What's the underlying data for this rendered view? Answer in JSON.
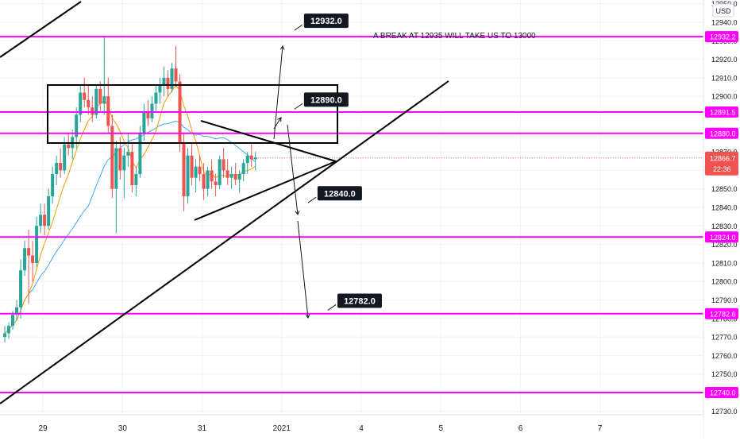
{
  "chart_data": {
    "type": "candlestick",
    "currency": "USD",
    "y_ticks": [
      12730,
      12740,
      12750,
      12760,
      12770,
      12780,
      12790,
      12800,
      12810,
      12820,
      12830,
      12840,
      12850,
      12860,
      12870,
      12880,
      12890,
      12900,
      12910,
      12920,
      12930,
      12940,
      12950
    ],
    "x_ticks": [
      {
        "label": "29",
        "day": 29
      },
      {
        "label": "30",
        "day": 30
      },
      {
        "label": "31",
        "day": 31
      },
      {
        "label": "2021",
        "day": 32
      },
      {
        "label": "4",
        "day": 33
      },
      {
        "label": "5",
        "day": 34
      },
      {
        "label": "6",
        "day": 35
      },
      {
        "label": "7",
        "day": 36
      }
    ],
    "ylim": [
      12728,
      12952
    ],
    "xlim": [
      28.46,
      37.3
    ],
    "grid": true,
    "levels": [
      {
        "value": 12932.2,
        "label": "12932.2"
      },
      {
        "value": 12891.5,
        "label": "12891.5"
      },
      {
        "value": 12880.0,
        "label": "12880.0"
      },
      {
        "value": 12824.0,
        "label": "12824.0"
      },
      {
        "value": 12782.6,
        "label": "12782.6"
      },
      {
        "value": 12740.0,
        "label": "12740.0"
      }
    ],
    "last_price": {
      "value": 12866.7,
      "label": "12866.7",
      "countdown": "22:36"
    },
    "callouts": [
      {
        "label": "12932.0",
        "x": 32.28,
        "y": 12940.8
      },
      {
        "label": "12890.0",
        "x": 32.28,
        "y": 12898.2
      },
      {
        "label": "12840.0",
        "x": 32.45,
        "y": 12847.6
      },
      {
        "label": "12782.0",
        "x": 32.7,
        "y": 12789.6
      }
    ],
    "annotation": "A BREAK AT 12935 WILL TAKE US TO 13000",
    "candles": [
      [
        28.52,
        12770,
        12776,
        12767,
        12772
      ],
      [
        28.57,
        12772,
        12778,
        12769,
        12776
      ],
      [
        28.62,
        12776,
        12784,
        12774,
        12782
      ],
      [
        28.67,
        12782,
        12790,
        12779,
        12786
      ],
      [
        28.72,
        12786,
        12812,
        12780,
        12806
      ],
      [
        28.77,
        12806,
        12822,
        12803,
        12818
      ],
      [
        28.82,
        12818,
        12828,
        12788,
        12814
      ],
      [
        28.87,
        12814,
        12822,
        12800,
        12810
      ],
      [
        28.92,
        12810,
        12835,
        12808,
        12830
      ],
      [
        28.97,
        12830,
        12842,
        12826,
        12836
      ],
      [
        29.02,
        12836,
        12842,
        12825,
        12830
      ],
      [
        29.07,
        12830,
        12850,
        12828,
        12846
      ],
      [
        29.12,
        12846,
        12862,
        12842,
        12858
      ],
      [
        29.17,
        12858,
        12868,
        12852,
        12864
      ],
      [
        29.22,
        12864,
        12872,
        12856,
        12860
      ],
      [
        29.27,
        12860,
        12878,
        12858,
        12874
      ],
      [
        29.32,
        12874,
        12880,
        12868,
        12872
      ],
      [
        29.37,
        12872,
        12882,
        12866,
        12878
      ],
      [
        29.42,
        12878,
        12894,
        12872,
        12890
      ],
      [
        29.47,
        12890,
        12906,
        12886,
        12902
      ],
      [
        29.52,
        12902,
        12910,
        12894,
        12898
      ],
      [
        29.57,
        12898,
        12906,
        12890,
        12894
      ],
      [
        29.62,
        12894,
        12900,
        12886,
        12890
      ],
      [
        29.67,
        12890,
        12906,
        12888,
        12904
      ],
      [
        29.72,
        12904,
        12908,
        12892,
        12896
      ],
      [
        29.77,
        12896,
        12932,
        12890,
        12900
      ],
      [
        29.82,
        12900,
        12910,
        12880,
        12884
      ],
      [
        29.87,
        12884,
        12890,
        12845,
        12850
      ],
      [
        29.92,
        12850,
        12876,
        12826,
        12872
      ],
      [
        29.97,
        12872,
        12878,
        12855,
        12860
      ],
      [
        30.02,
        12860,
        12872,
        12845,
        12868
      ],
      [
        30.07,
        12868,
        12880,
        12862,
        12870
      ],
      [
        30.12,
        12870,
        12875,
        12848,
        12852
      ],
      [
        30.17,
        12852,
        12862,
        12846,
        12858
      ],
      [
        30.22,
        12858,
        12884,
        12856,
        12880
      ],
      [
        30.27,
        12880,
        12896,
        12876,
        12892
      ],
      [
        30.32,
        12892,
        12898,
        12884,
        12888
      ],
      [
        30.37,
        12888,
        12900,
        12886,
        12896
      ],
      [
        30.42,
        12896,
        12906,
        12892,
        12902
      ],
      [
        30.47,
        12902,
        12910,
        12896,
        12906
      ],
      [
        30.52,
        12906,
        12916,
        12900,
        12910
      ],
      [
        30.57,
        12910,
        12914,
        12900,
        12904
      ],
      [
        30.62,
        12904,
        12918,
        12902,
        12915
      ],
      [
        30.67,
        12915,
        12927,
        12905,
        12908
      ],
      [
        30.72,
        12908,
        12912,
        12870,
        12875
      ],
      [
        30.77,
        12875,
        12880,
        12838,
        12846
      ],
      [
        30.82,
        12846,
        12872,
        12842,
        12868
      ],
      [
        30.87,
        12868,
        12875,
        12852,
        12856
      ],
      [
        30.92,
        12856,
        12866,
        12848,
        12862
      ],
      [
        30.97,
        12862,
        12868,
        12854,
        12858
      ],
      [
        31.02,
        12858,
        12864,
        12844,
        12850
      ],
      [
        31.07,
        12850,
        12862,
        12846,
        12860
      ],
      [
        31.12,
        12860,
        12866,
        12850,
        12854
      ],
      [
        31.17,
        12854,
        12858,
        12846,
        12852
      ],
      [
        31.22,
        12852,
        12868,
        12850,
        12866
      ],
      [
        31.27,
        12866,
        12872,
        12856,
        12860
      ],
      [
        31.32,
        12860,
        12866,
        12852,
        12856
      ],
      [
        31.37,
        12856,
        12862,
        12850,
        12858
      ],
      [
        31.42,
        12858,
        12864,
        12852,
        12855
      ],
      [
        31.47,
        12855,
        12860,
        12848,
        12858
      ],
      [
        31.52,
        12858,
        12866,
        12854,
        12864
      ],
      [
        31.57,
        12864,
        12870,
        12858,
        12868
      ],
      [
        31.62,
        12868,
        12874,
        12862,
        12866
      ],
      [
        31.67,
        12866,
        12870,
        12860,
        12867
      ]
    ]
  }
}
